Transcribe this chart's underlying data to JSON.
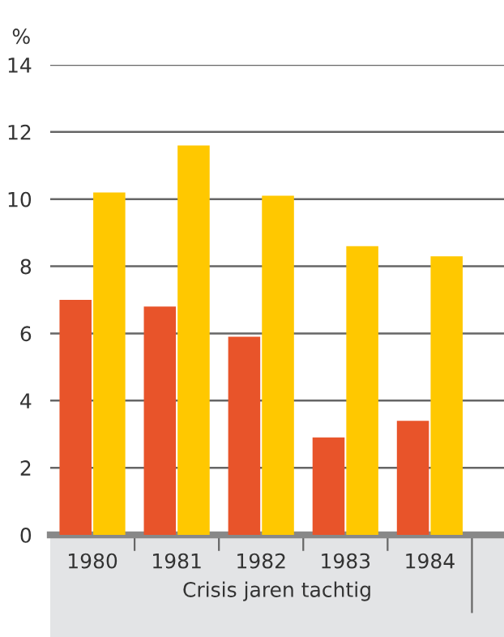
{
  "chart_data": {
    "type": "bar",
    "ylabel": "%",
    "xlabel": "Crisis jaren tachtig",
    "categories": [
      "1980",
      "1981",
      "1982",
      "1983",
      "1984"
    ],
    "series": [
      {
        "color": "#e8542a",
        "values": [
          7.0,
          6.8,
          5.9,
          2.9,
          3.4
        ]
      },
      {
        "color": "#ffc800",
        "values": [
          10.2,
          11.6,
          10.1,
          8.6,
          8.3
        ]
      }
    ],
    "ylim": [
      0,
      14
    ],
    "yticks": [
      0,
      2,
      4,
      6,
      8,
      10,
      12,
      14
    ],
    "grid": "y",
    "legend": false
  }
}
